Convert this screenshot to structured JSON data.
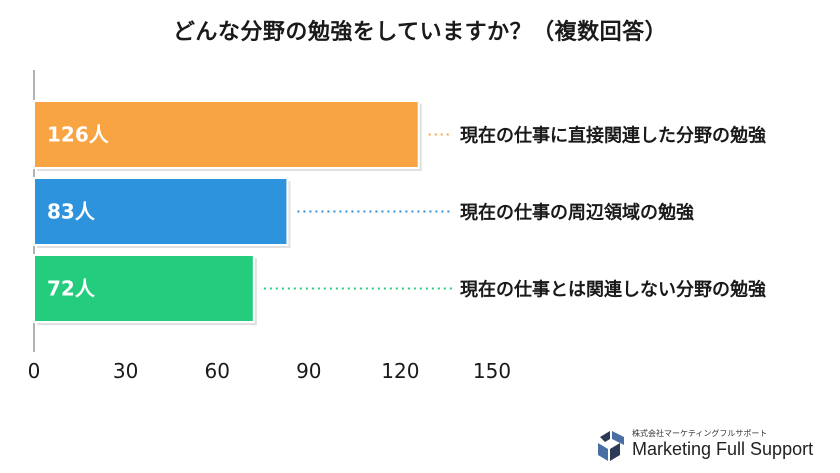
{
  "chart_data": {
    "type": "bar",
    "orientation": "horizontal",
    "title": "どんな分野の勉強をしていますか？（複数回答）",
    "categories": [
      "現在の仕事に直接関連した分野の勉強",
      "現在の仕事の周辺領域の勉強",
      "現在の仕事とは関連しない分野の勉強"
    ],
    "values": [
      126,
      83,
      72
    ],
    "value_labels": [
      "126人",
      "83人",
      "72人"
    ],
    "colors": [
      "#F9A443",
      "#2E93DD",
      "#24CD7D"
    ],
    "xlim": [
      0,
      150
    ],
    "xticks": [
      0,
      30,
      60,
      90,
      120,
      150
    ],
    "grid": false,
    "xlabel": "",
    "ylabel": ""
  },
  "brand": {
    "subtitle": "株式会社マーケティングフルサポート",
    "name": "Marketing Full Support",
    "mark_colors": [
      "#2b3a55",
      "#4a6fa5"
    ]
  }
}
